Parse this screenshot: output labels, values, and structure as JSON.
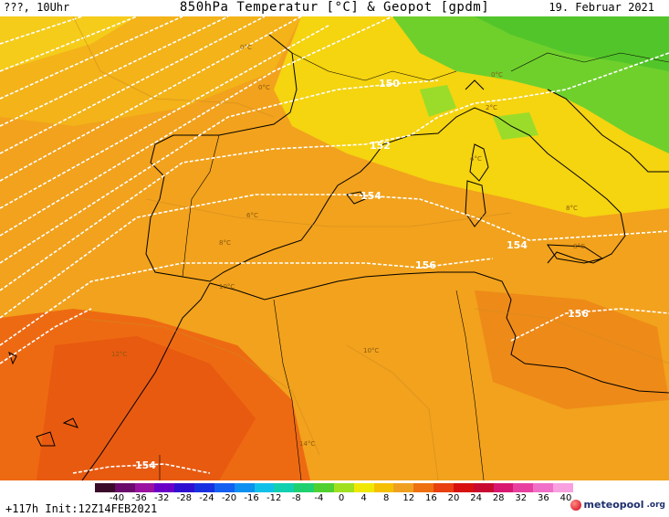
{
  "header": {
    "run_label": "???, 10Uhr",
    "title": "850hPa Temperatur [°C] & Geopot [gpdm]",
    "date": "19. Februar 2021"
  },
  "map": {
    "geopotential_labels": [
      "150",
      "152",
      "154",
      "154",
      "156",
      "156",
      "154"
    ],
    "temperature_labels": [
      "0°C",
      "0°C",
      "6°C",
      "8°C",
      "10°C",
      "12°C",
      "10°C",
      "14°C",
      "0°C",
      "2°C",
      "4°C",
      "8°C",
      "8°C"
    ],
    "colors": {
      "ocean_orange": "#f2a21c",
      "land_orange": "#f0a020",
      "hot_orange": "#ee6a12",
      "yellow": "#f5dc10",
      "green": "#6fd02c",
      "coast": "#000000",
      "isoline": "#ffffff"
    }
  },
  "legend": {
    "ticks": [
      "-40",
      "-36",
      "-32",
      "-28",
      "-24",
      "-20",
      "-16",
      "-12",
      "-8",
      "-4",
      "0",
      "4",
      "8",
      "12",
      "16",
      "20",
      "24",
      "28",
      "32",
      "36",
      "40"
    ],
    "colors": [
      "#3a0a2a",
      "#6a0a6a",
      "#9a10a0",
      "#6a00c8",
      "#3010d0",
      "#1830e0",
      "#1460f0",
      "#1090f0",
      "#10c0e8",
      "#10d0b0",
      "#20d070",
      "#50d030",
      "#a0e020",
      "#f0e800",
      "#f5c000",
      "#f0a020",
      "#ee7010",
      "#e84010",
      "#d81010",
      "#c80a30",
      "#d81870",
      "#e840a0",
      "#f070c8",
      "#f8a0e0"
    ],
    "init_label": "+117h Init:12Z14FEB2021",
    "brand_name": "meteopool",
    "brand_tld": ".org"
  }
}
